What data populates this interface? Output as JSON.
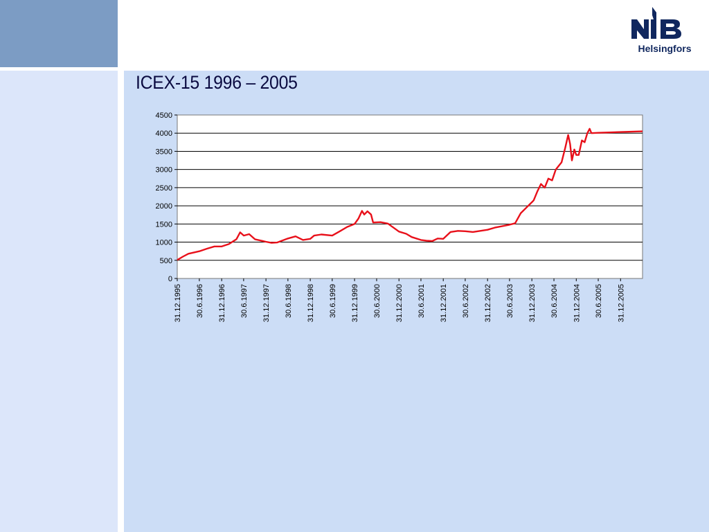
{
  "header": {
    "logo_text": "NIB",
    "logo_subtitle": "Helsingfors"
  },
  "slide": {
    "title": "ICEX-15 1996 – 2005"
  },
  "colors": {
    "line": "#e8101a",
    "top_left_block": "#7c9cc4",
    "left_panel": "#dce6fa",
    "main_panel": "#ccddf6",
    "logo": "#10275e"
  },
  "chart_data": {
    "type": "line",
    "title": "",
    "xlabel": "",
    "ylabel": "",
    "ylim": [
      0,
      4500
    ],
    "yticks": [
      0,
      500,
      1000,
      1500,
      2000,
      2500,
      3000,
      3500,
      4000,
      4500
    ],
    "xlim": [
      "1995-12-31",
      "2006-06-30"
    ],
    "xticks": [
      "31.12.1995",
      "30.6.1996",
      "31.12.1996",
      "30.6.1997",
      "31.12.1997",
      "30.6.1998",
      "31.12.1998",
      "30.6.1999",
      "31.12.1999",
      "30.6.2000",
      "31.12.2000",
      "30.6.2001",
      "31.12.2001",
      "30.6.2002",
      "31.12.2002",
      "30.6.2003",
      "31.12.2003",
      "30.6.2004",
      "31.12.2004",
      "30.6.2005",
      "31.12.2005"
    ],
    "grid": "horizontal",
    "series": [
      {
        "name": "",
        "points": [
          [
            "1995-12-31",
            510
          ],
          [
            "1996-02-15",
            600
          ],
          [
            "1996-04-01",
            680
          ],
          [
            "1996-06-30",
            750
          ],
          [
            "1996-09-01",
            820
          ],
          [
            "1996-11-01",
            880
          ],
          [
            "1996-12-31",
            880
          ],
          [
            "1997-03-01",
            950
          ],
          [
            "1997-05-01",
            1080
          ],
          [
            "1997-06-01",
            1270
          ],
          [
            "1997-07-01",
            1180
          ],
          [
            "1997-08-15",
            1220
          ],
          [
            "1997-10-01",
            1080
          ],
          [
            "1997-12-31",
            1010
          ],
          [
            "1998-02-15",
            980
          ],
          [
            "1998-04-01",
            990
          ],
          [
            "1998-06-30",
            1100
          ],
          [
            "1998-09-01",
            1160
          ],
          [
            "1998-11-01",
            1060
          ],
          [
            "1998-12-31",
            1090
          ],
          [
            "1999-02-01",
            1180
          ],
          [
            "1999-04-01",
            1210
          ],
          [
            "1999-06-30",
            1180
          ],
          [
            "1999-09-01",
            1300
          ],
          [
            "1999-11-01",
            1420
          ],
          [
            "1999-12-31",
            1500
          ],
          [
            "2000-02-01",
            1650
          ],
          [
            "2000-03-01",
            1860
          ],
          [
            "2000-03-20",
            1760
          ],
          [
            "2000-04-15",
            1850
          ],
          [
            "2000-05-15",
            1760
          ],
          [
            "2000-06-01",
            1540
          ],
          [
            "2000-08-01",
            1550
          ],
          [
            "2000-10-01",
            1510
          ],
          [
            "2000-12-31",
            1290
          ],
          [
            "2001-03-01",
            1230
          ],
          [
            "2001-04-15",
            1140
          ],
          [
            "2001-06-30",
            1060
          ],
          [
            "2001-08-15",
            1040
          ],
          [
            "2001-10-01",
            1030
          ],
          [
            "2001-11-15",
            1100
          ],
          [
            "2001-12-31",
            1090
          ],
          [
            "2002-03-01",
            1280
          ],
          [
            "2002-05-01",
            1310
          ],
          [
            "2002-06-30",
            1300
          ],
          [
            "2002-09-01",
            1280
          ],
          [
            "2002-12-31",
            1340
          ],
          [
            "2003-03-01",
            1400
          ],
          [
            "2003-06-30",
            1480
          ],
          [
            "2003-08-15",
            1520
          ],
          [
            "2003-10-01",
            1800
          ],
          [
            "2003-12-31",
            2100
          ],
          [
            "2004-01-15",
            2150
          ],
          [
            "2004-02-15",
            2400
          ],
          [
            "2004-03-15",
            2600
          ],
          [
            "2004-04-15",
            2500
          ],
          [
            "2004-05-15",
            2750
          ],
          [
            "2004-06-15",
            2700
          ],
          [
            "2004-07-15",
            3000
          ],
          [
            "2004-09-01",
            3200
          ],
          [
            "2004-10-01",
            3600
          ],
          [
            "2004-10-25",
            3950
          ],
          [
            "2004-11-10",
            3700
          ],
          [
            "2004-11-25",
            3250
          ],
          [
            "2004-12-15",
            3550
          ],
          [
            "2004-12-31",
            3400
          ],
          [
            "2005-01-20",
            3400
          ],
          [
            "2005-02-15",
            3800
          ],
          [
            "2005-03-10",
            3750
          ],
          [
            "2005-04-01",
            4000
          ],
          [
            "2005-04-20",
            4120
          ],
          [
            "2005-05-05",
            4000
          ],
          [
            "2005-06-30",
            4010
          ],
          [
            "2005-12-31",
            4030
          ],
          [
            "2006-06-30",
            4050
          ]
        ]
      }
    ]
  }
}
